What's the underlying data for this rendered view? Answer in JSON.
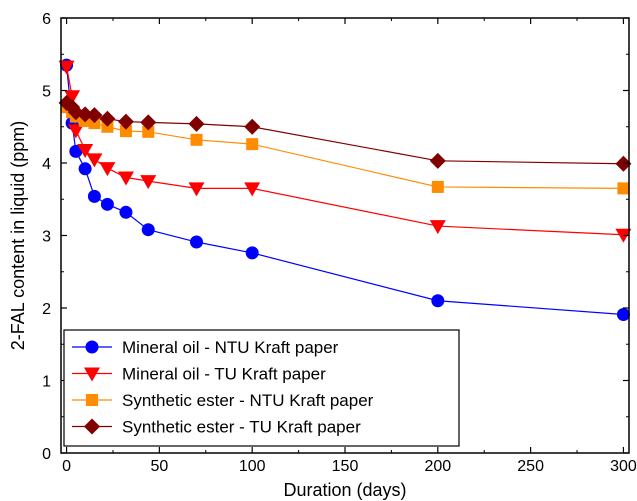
{
  "chart_data": {
    "type": "line",
    "title": "",
    "xlabel": "Duration (days)",
    "ylabel": "2-FAL content in liquid (ppm)",
    "xlim": [
      -3,
      303
    ],
    "ylim": [
      0,
      6
    ],
    "x_ticks": [
      0,
      50,
      100,
      150,
      200,
      250,
      300
    ],
    "y_ticks": [
      0,
      1,
      2,
      3,
      4,
      5,
      6
    ],
    "x_tick_labels": [
      "0",
      "50",
      "100",
      "150",
      "200",
      "250",
      "300"
    ],
    "y_tick_labels": [
      "0",
      "1",
      "2",
      "3",
      "4",
      "5",
      "6"
    ],
    "grid": false,
    "legend_position": "bottom-left",
    "series": [
      {
        "name": "Mineral oil - NTU Kraft paper",
        "color": "#0000ff",
        "marker": "circle",
        "x": [
          0,
          3,
          5,
          10,
          15,
          22,
          32,
          44,
          70,
          100,
          200,
          300
        ],
        "y": [
          5.35,
          4.55,
          4.16,
          3.92,
          3.54,
          3.43,
          3.32,
          3.08,
          2.91,
          2.76,
          2.1,
          1.91
        ]
      },
      {
        "name": "Mineral oil - TU Kraft paper",
        "color": "#ff0000",
        "marker": "triangle-down",
        "x": [
          0,
          3,
          5,
          10,
          15,
          22,
          32,
          44,
          70,
          100,
          200,
          300
        ],
        "y": [
          5.33,
          4.92,
          4.45,
          4.18,
          4.05,
          3.93,
          3.8,
          3.75,
          3.65,
          3.65,
          3.13,
          3.01
        ]
      },
      {
        "name": "Synthetic ester - NTU Kraft paper",
        "color": "#ff8c00",
        "marker": "square",
        "x": [
          0,
          3,
          5,
          10,
          15,
          22,
          32,
          44,
          70,
          100,
          200,
          300
        ],
        "y": [
          4.77,
          4.7,
          4.64,
          4.58,
          4.55,
          4.5,
          4.44,
          4.43,
          4.32,
          4.26,
          3.67,
          3.65
        ]
      },
      {
        "name": "Synthetic ester - TU Kraft paper",
        "color": "#800000",
        "marker": "diamond",
        "x": [
          0,
          3,
          5,
          10,
          15,
          22,
          32,
          44,
          70,
          100,
          200,
          300
        ],
        "y": [
          4.83,
          4.77,
          4.7,
          4.67,
          4.66,
          4.61,
          4.57,
          4.56,
          4.54,
          4.5,
          4.03,
          3.99
        ]
      }
    ]
  }
}
